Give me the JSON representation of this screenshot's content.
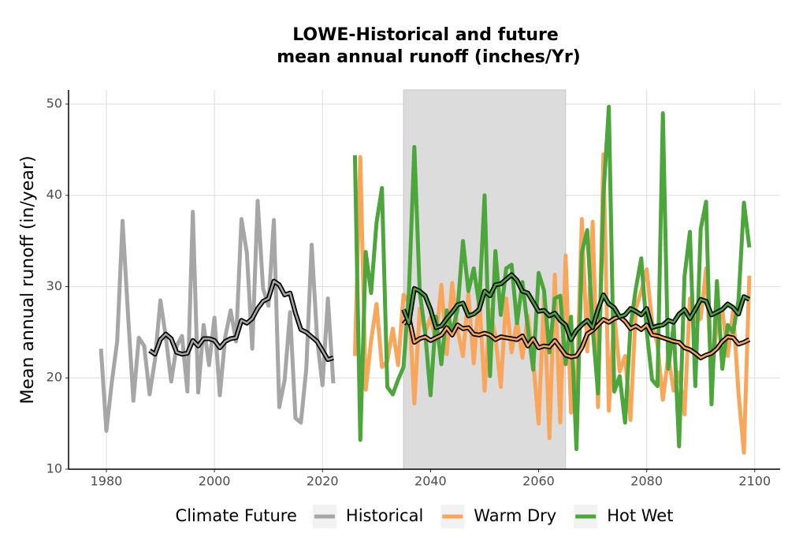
{
  "chart_data": {
    "type": "line",
    "title_lines": [
      "LOWE-Historical and future",
      "mean annual runoff (inches/Yr)"
    ],
    "y_label": "Mean annual runoff (in/year)",
    "legend_title": "Climate Future",
    "legend_position": "bottom",
    "grid": true,
    "xlim": [
      1973,
      2104.7
    ],
    "ylim": [
      10,
      51.55
    ],
    "xticks": [
      1980,
      2000,
      2020,
      2040,
      2060,
      2080,
      2100
    ],
    "yticks": [
      10,
      20,
      30,
      40,
      50
    ],
    "shade": [
      2035,
      2065
    ],
    "shade_color": "#dcdcdc",
    "series": [
      {
        "name": "Historical",
        "color": "#a6a6a6",
        "x": [
          1979,
          1980,
          1981,
          1982,
          1983,
          1984,
          1985,
          1986,
          1987,
          1988,
          1989,
          1990,
          1991,
          1992,
          1993,
          1994,
          1995,
          1996,
          1997,
          1998,
          1999,
          2000,
          2001,
          2002,
          2003,
          2004,
          2005,
          2006,
          2007,
          2008,
          2009,
          2010,
          2011,
          2012,
          2013,
          2014,
          2015,
          2016,
          2017,
          2018,
          2019,
          2020,
          2021,
          2022
        ],
        "values": [
          23.2,
          14.2,
          19.5,
          24,
          37.2,
          27,
          17.5,
          24.4,
          23.5,
          18.2,
          22,
          28.5,
          24.5,
          19.6,
          23.5,
          24.6,
          18.5,
          38.2,
          18.4,
          25.8,
          21.4,
          26.6,
          18.1,
          24.5,
          27.4,
          24,
          37.4,
          33.7,
          23.2,
          39.4,
          29.8,
          27.9,
          37.3,
          16.8,
          19.8,
          27.2,
          15.6,
          15.1,
          21,
          34.6,
          24.3,
          19.2,
          28.7,
          19.4
        ],
        "rolling_x": [
          1988,
          1989,
          1990,
          1991,
          1992,
          1993,
          1994,
          1995,
          1996,
          1997,
          1998,
          1999,
          2000,
          2001,
          2002,
          2003,
          2004,
          2005,
          2006,
          2007,
          2008,
          2009,
          2010,
          2011,
          2012,
          2013,
          2014,
          2015,
          2016,
          2017,
          2018,
          2019,
          2020,
          2021,
          2022
        ],
        "rolling_values": [
          23,
          22.6,
          24.2,
          24.8,
          24.3,
          22.8,
          22.6,
          22.7,
          24.1,
          23.5,
          24.3,
          24.3,
          24.1,
          23.3,
          24,
          24.3,
          24.4,
          26.3,
          26,
          26.5,
          27.6,
          28.4,
          28.7,
          30.6,
          30.2,
          29.1,
          29.3,
          27.1,
          25.3,
          25,
          24.5,
          24,
          23,
          22,
          22.2
        ]
      },
      {
        "name": "Warm Dry",
        "color": "#f9a65a",
        "x": [
          2026,
          2027,
          2028,
          2029,
          2030,
          2031,
          2032,
          2033,
          2034,
          2035,
          2036,
          2037,
          2038,
          2039,
          2040,
          2041,
          2042,
          2043,
          2044,
          2045,
          2046,
          2047,
          2048,
          2049,
          2050,
          2051,
          2052,
          2053,
          2054,
          2055,
          2056,
          2057,
          2058,
          2059,
          2060,
          2061,
          2062,
          2063,
          2064,
          2065,
          2066,
          2067,
          2068,
          2069,
          2070,
          2071,
          2072,
          2073,
          2074,
          2075,
          2076,
          2077,
          2078,
          2079,
          2080,
          2081,
          2082,
          2083,
          2084,
          2085,
          2086,
          2087,
          2088,
          2089,
          2090,
          2091,
          2092,
          2093,
          2094,
          2095,
          2096,
          2097,
          2098,
          2099
        ],
        "values": [
          22.4,
          44.2,
          18.7,
          24.1,
          28.1,
          21.2,
          21.8,
          25.4,
          21.4,
          29.1,
          28.2,
          17.2,
          27.6,
          25,
          26.6,
          24.1,
          30.2,
          22.6,
          30.4,
          25.2,
          22.4,
          29.2,
          21.6,
          29.1,
          18.6,
          27.4,
          24.6,
          19,
          28.7,
          22.8,
          26.2,
          22.2,
          26.8,
          21.8,
          15,
          28.9,
          13.4,
          31.3,
          15.1,
          33.4,
          16.2,
          17.6,
          37.4,
          22.9,
          37.1,
          16.8,
          44.5,
          16.4,
          27,
          20.7,
          22.4,
          15.4,
          27.6,
          29.5,
          31.9,
          26.1,
          23.6,
          17.6,
          22.4,
          18.6,
          20.6,
          16,
          28.7,
          26.1,
          26.5,
          32,
          19.8,
          25.8,
          27.5,
          22.4,
          27.4,
          18.3,
          11.8,
          31.2
        ],
        "rolling_x": [
          2035,
          2036,
          2037,
          2038,
          2039,
          2040,
          2041,
          2042,
          2043,
          2044,
          2045,
          2046,
          2047,
          2048,
          2049,
          2050,
          2051,
          2052,
          2053,
          2054,
          2055,
          2056,
          2057,
          2058,
          2059,
          2060,
          2061,
          2062,
          2063,
          2064,
          2065,
          2066,
          2067,
          2068,
          2069,
          2070,
          2071,
          2072,
          2073,
          2074,
          2075,
          2076,
          2077,
          2078,
          2079,
          2080,
          2081,
          2082,
          2083,
          2084,
          2085,
          2086,
          2087,
          2088,
          2089,
          2090,
          2091,
          2092,
          2093,
          2094,
          2095,
          2096,
          2097,
          2098,
          2099
        ],
        "rolling_values": [
          25.9,
          26.6,
          23.9,
          24.3,
          24.5,
          24.1,
          24.4,
          24.7,
          25.5,
          24.7,
          25.8,
          25.4,
          25.5,
          24.8,
          24.7,
          24.9,
          24.7,
          24.2,
          24.5,
          24.4,
          24.3,
          24.2,
          24.6,
          23.5,
          24.3,
          23.3,
          23.5,
          23.4,
          24.1,
          23.3,
          22.5,
          22.3,
          22.4,
          23.3,
          24.8,
          25.2,
          25.8,
          26.4,
          26.1,
          26.5,
          26.7,
          26.2,
          25.4,
          25.7,
          25.3,
          25.8,
          24.7,
          24.6,
          24.4,
          24.2,
          24,
          23.9,
          23.3,
          23.1,
          22.7,
          22.2,
          22.5,
          22.7,
          23.2,
          24,
          24.5,
          24.4,
          23.7,
          23.9,
          24.2
        ]
      },
      {
        "name": "Hot Wet",
        "color": "#4ca63b",
        "x": [
          2026,
          2027,
          2028,
          2029,
          2030,
          2031,
          2032,
          2033,
          2034,
          2035,
          2036,
          2037,
          2038,
          2039,
          2040,
          2041,
          2042,
          2043,
          2044,
          2045,
          2046,
          2047,
          2048,
          2049,
          2050,
          2051,
          2052,
          2053,
          2054,
          2055,
          2056,
          2057,
          2058,
          2059,
          2060,
          2061,
          2062,
          2063,
          2064,
          2065,
          2066,
          2067,
          2068,
          2069,
          2070,
          2071,
          2072,
          2073,
          2074,
          2075,
          2076,
          2077,
          2078,
          2079,
          2080,
          2081,
          2082,
          2083,
          2084,
          2085,
          2086,
          2087,
          2088,
          2089,
          2090,
          2091,
          2092,
          2093,
          2094,
          2095,
          2096,
          2097,
          2098,
          2099
        ],
        "values": [
          44.4,
          13.2,
          33.8,
          29.3,
          37,
          40.8,
          19,
          18.2,
          19.8,
          21.2,
          29.5,
          45.3,
          29.4,
          25,
          18.1,
          26.7,
          21.5,
          27.4,
          25,
          27.5,
          35,
          29.5,
          32,
          28,
          40,
          20.2,
          33.9,
          26.9,
          32,
          32.4,
          26,
          30.5,
          25.5,
          20.9,
          31.5,
          29.6,
          22.8,
          28.7,
          29,
          21.5,
          26.7,
          12.2,
          33.7,
          36.2,
          25.5,
          18.3,
          40,
          49.7,
          18.5,
          20.2,
          15.1,
          25.6,
          29.8,
          33.1,
          25.2,
          19.8,
          19.1,
          49,
          21,
          25.8,
          12.5,
          31.1,
          36,
          19.1,
          36.3,
          39.3,
          17.1,
          30.6,
          21,
          25.8,
          25,
          28.5,
          39.2,
          34.3
        ],
        "rolling_x": [
          2035,
          2036,
          2037,
          2038,
          2039,
          2040,
          2041,
          2042,
          2043,
          2044,
          2045,
          2046,
          2047,
          2048,
          2049,
          2050,
          2051,
          2052,
          2053,
          2054,
          2055,
          2056,
          2057,
          2058,
          2059,
          2060,
          2061,
          2062,
          2063,
          2064,
          2065,
          2066,
          2067,
          2068,
          2069,
          2070,
          2071,
          2072,
          2073,
          2074,
          2075,
          2076,
          2077,
          2078,
          2079,
          2080,
          2081,
          2082,
          2083,
          2084,
          2085,
          2086,
          2087,
          2088,
          2089,
          2090,
          2091,
          2092,
          2093,
          2094,
          2095,
          2096,
          2097,
          2098,
          2099
        ],
        "rolling_values": [
          27.5,
          26,
          29.8,
          29.5,
          29,
          27.5,
          25.5,
          25.7,
          26.5,
          27.2,
          28,
          28.2,
          26.8,
          27,
          27.5,
          29.5,
          29,
          30.2,
          30.3,
          30.8,
          31.3,
          30.7,
          29.5,
          29.3,
          28.3,
          27.3,
          27.4,
          26.8,
          27.1,
          26.3,
          25.8,
          24.2,
          25.2,
          25.8,
          26.3,
          25.5,
          27.5,
          29.1,
          28.1,
          27.7,
          26.7,
          26.9,
          27.6,
          27.3,
          26.9,
          27.6,
          25.5,
          25.7,
          25.8,
          26.3,
          26.1,
          27,
          27.5,
          26.5,
          27.5,
          28.6,
          28.4,
          26.9,
          27.2,
          27.5,
          28.1,
          27.7,
          27,
          28.9,
          28.6
        ]
      }
    ]
  }
}
